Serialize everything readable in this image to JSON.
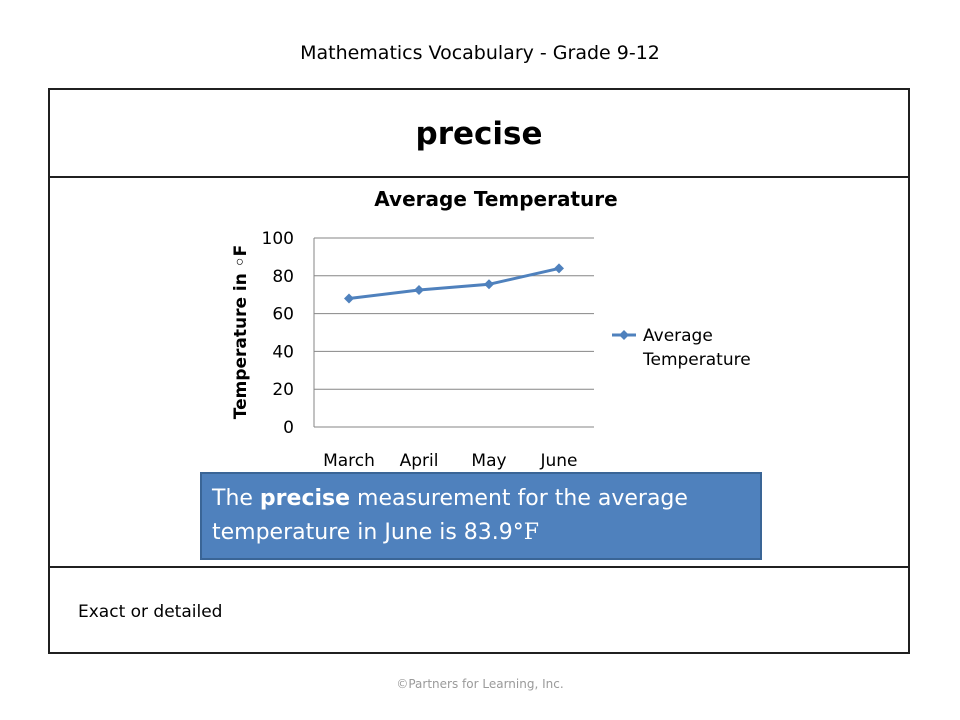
{
  "header": {
    "title": "Mathematics Vocabulary - Grade 9-12"
  },
  "word": "precise",
  "callout": {
    "prefix": "The ",
    "bold": "precise",
    "middle": " measurement for the average temperature in June is 83.9",
    "unit": "°F"
  },
  "definition": "Exact or detailed",
  "footer": "©Partners for Learning, Inc.",
  "chart_data": {
    "type": "line",
    "title": "Average Temperature",
    "xlabel": "",
    "ylabel": "Temperature in ◦F",
    "categories": [
      "March",
      "April",
      "May",
      "June"
    ],
    "series": [
      {
        "name": "Average Temperature",
        "values": [
          68,
          72.5,
          75.5,
          83.9
        ],
        "color": "#4f81bd"
      }
    ],
    "ylim": [
      0,
      100
    ],
    "yticks": [
      0,
      20,
      40,
      60,
      80,
      100
    ],
    "legend_position": "right",
    "grid": true
  }
}
